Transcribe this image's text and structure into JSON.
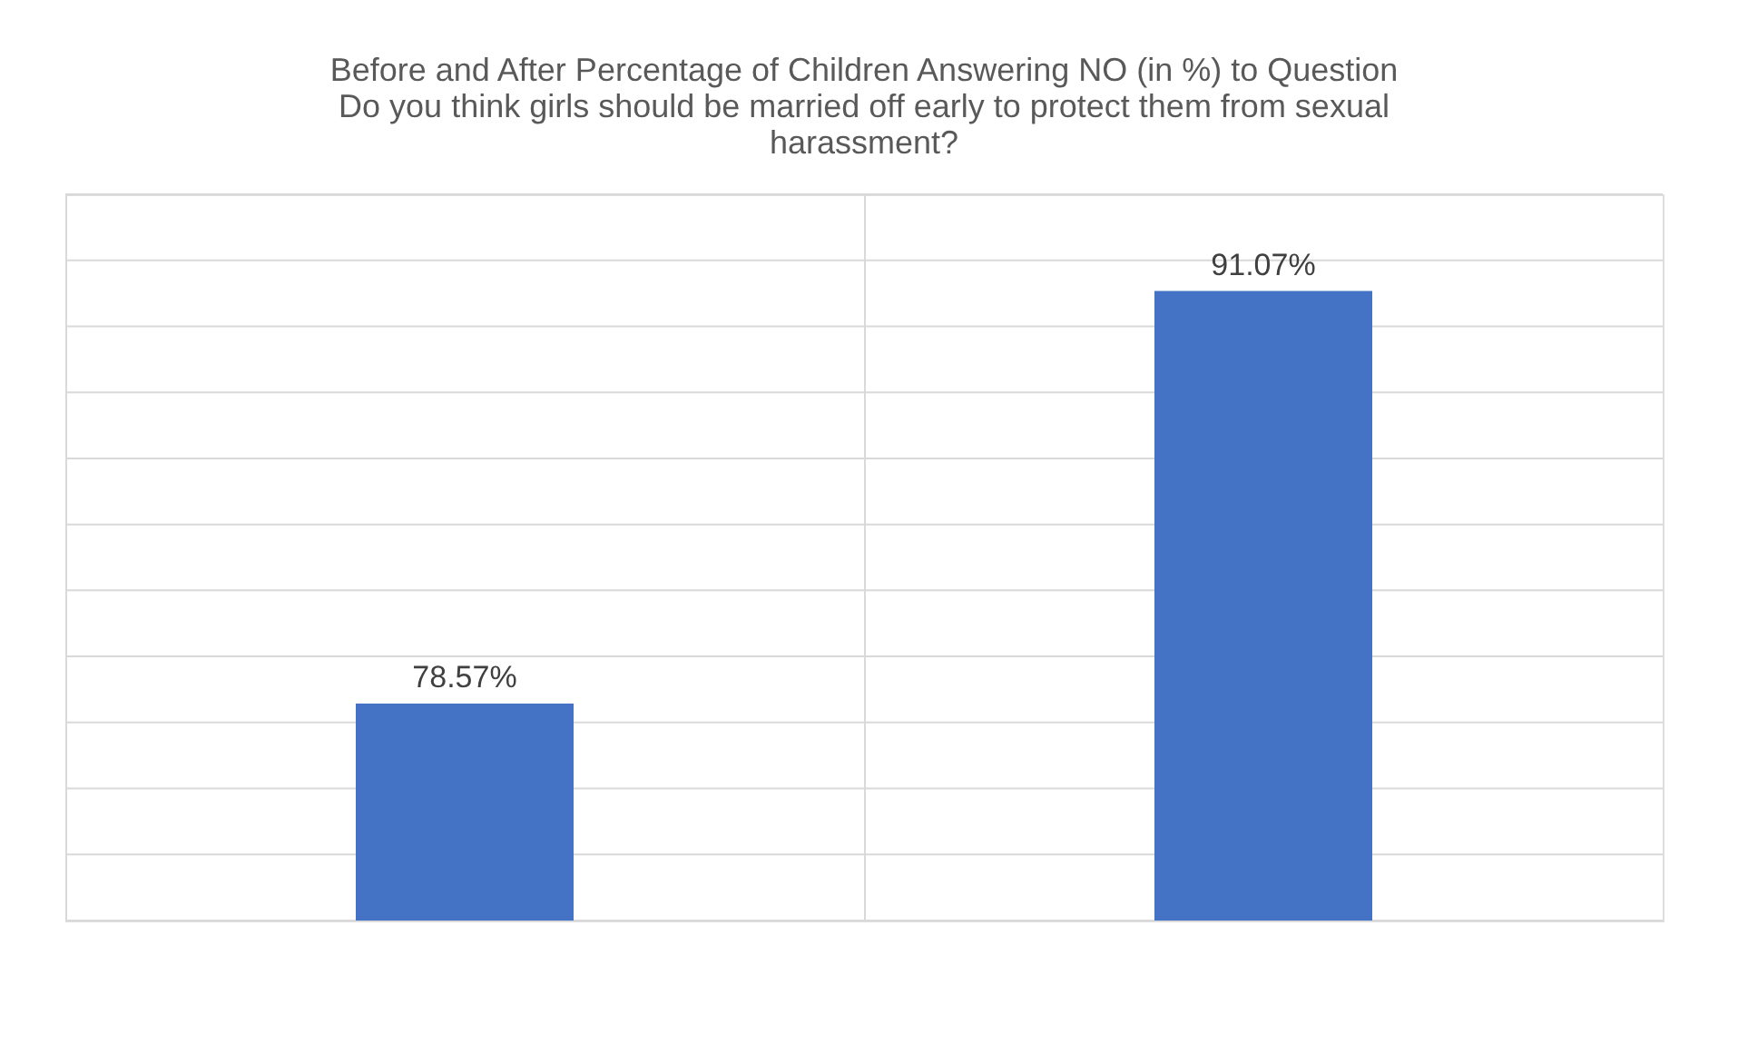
{
  "chart_data": {
    "type": "bar",
    "title": [
      "Before and After Percentage of Children Answering NO (in %) to Question",
      "Do you think girls should be married off early to protect them from sexual",
      "harassment?"
    ],
    "categories": [
      null,
      null
    ],
    "values": [
      78.57,
      91.07
    ],
    "value_labels": [
      "78.57%",
      "91.07%"
    ],
    "color": "#4472c4",
    "ylim": [
      72,
      94
    ],
    "yticks": [
      {
        "value": 72,
        "label": null
      },
      {
        "value": 74,
        "label": null
      },
      {
        "value": 76,
        "label": null
      },
      {
        "value": 78,
        "label": null
      },
      {
        "value": 80,
        "label": null
      },
      {
        "value": 82,
        "label": null
      },
      {
        "value": 84,
        "label": null
      },
      {
        "value": 86,
        "label": null
      },
      {
        "value": 88,
        "label": null
      },
      {
        "value": 90,
        "label": null
      },
      {
        "value": 92,
        "label": null
      },
      {
        "value": 94,
        "label": null
      }
    ],
    "grid": true,
    "tick_labels": false
  }
}
